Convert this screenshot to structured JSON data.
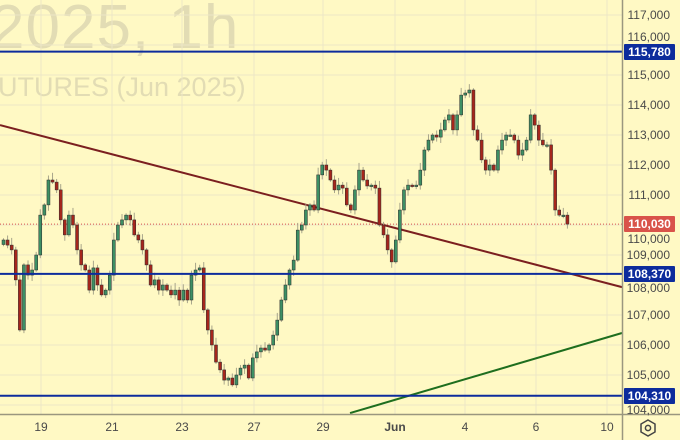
{
  "watermark": {
    "line1": "2025, 1h",
    "line2": "UTURES (Jun 2025)"
  },
  "colors": {
    "background": "#fff9c4",
    "up": "#3d8f64",
    "down": "#a5261c",
    "level_line": "#0d2c9c",
    "trendline_down": "#7b1f1f",
    "trendline_up": "#1e6e1e",
    "last_price": "#d9534a"
  },
  "chart_data": {
    "type": "candlestick",
    "timeframe": "1h",
    "ylim": [
      103650,
      117500
    ],
    "price_ticks": [
      104000,
      105000,
      106000,
      107000,
      108000,
      109000,
      110000,
      111000,
      112000,
      113000,
      114000,
      115000,
      116000,
      117000
    ],
    "price_tick_labels": [
      "104,000",
      "105,000",
      "106,000",
      "107,000",
      "108,000",
      "109,000",
      "110,000",
      "111,000",
      "112,000",
      "113,000",
      "114,000",
      "115,000",
      "116,000",
      "117,000"
    ],
    "date_ticks": [
      "19",
      "21",
      "23",
      "27",
      "29",
      "Jun",
      "4",
      "6",
      "10"
    ],
    "closes": [
      109500,
      109330,
      109170,
      108170,
      106500,
      108670,
      108330,
      108500,
      109000,
      110330,
      110670,
      111500,
      111430,
      111170,
      110170,
      109670,
      110330,
      110000,
      109170,
      108670,
      108500,
      107830,
      108570,
      108000,
      107670,
      107830,
      108330,
      109500,
      110000,
      110170,
      110330,
      110170,
      109670,
      109500,
      109170,
      108670,
      108000,
      108170,
      107830,
      108000,
      107830,
      107670,
      107830,
      107500,
      107830,
      107500,
      108330,
      108500,
      108570,
      107170,
      106500,
      106000,
      105430,
      105170,
      104830,
      104900,
      104670,
      105000,
      105230,
      105330,
      104900,
      105570,
      105770,
      105900,
      105830,
      106000,
      106330,
      106830,
      107500,
      108000,
      108500,
      108830,
      109830,
      110000,
      110500,
      110670,
      110500,
      111670,
      112000,
      111830,
      111500,
      111170,
      111330,
      111230,
      110670,
      110500,
      111170,
      111830,
      111500,
      111300,
      111330,
      111230,
      110000,
      109670,
      109170,
      108770,
      109500,
      110500,
      111170,
      111330,
      111300,
      111330,
      111830,
      112500,
      112830,
      113000,
      112930,
      113170,
      113500,
      113670,
      113170,
      113670,
      114330,
      114400,
      114500,
      113170,
      112830,
      112170,
      111830,
      112000,
      111830,
      112500,
      112830,
      113000,
      113000,
      112830,
      112330,
      112500,
      112830,
      113670,
      113330,
      112830,
      112670,
      112670,
      111830,
      110500,
      110330,
      110330,
      110030
    ],
    "horizontal_levels": [
      {
        "price": 115780,
        "label": "115,780"
      },
      {
        "price": 108370,
        "label": "108,370"
      },
      {
        "price": 104310,
        "label": "104,310"
      }
    ],
    "last_price": {
      "price": 110030,
      "label": "110,030"
    },
    "trendlines": [
      {
        "kind": "descending",
        "price_at_left": 113330,
        "price_at_right": 107930
      },
      {
        "kind": "ascending",
        "price_at_start": 103730,
        "price_at_right": 106400
      }
    ]
  },
  "settings_icon": "settings-hexagon-icon"
}
